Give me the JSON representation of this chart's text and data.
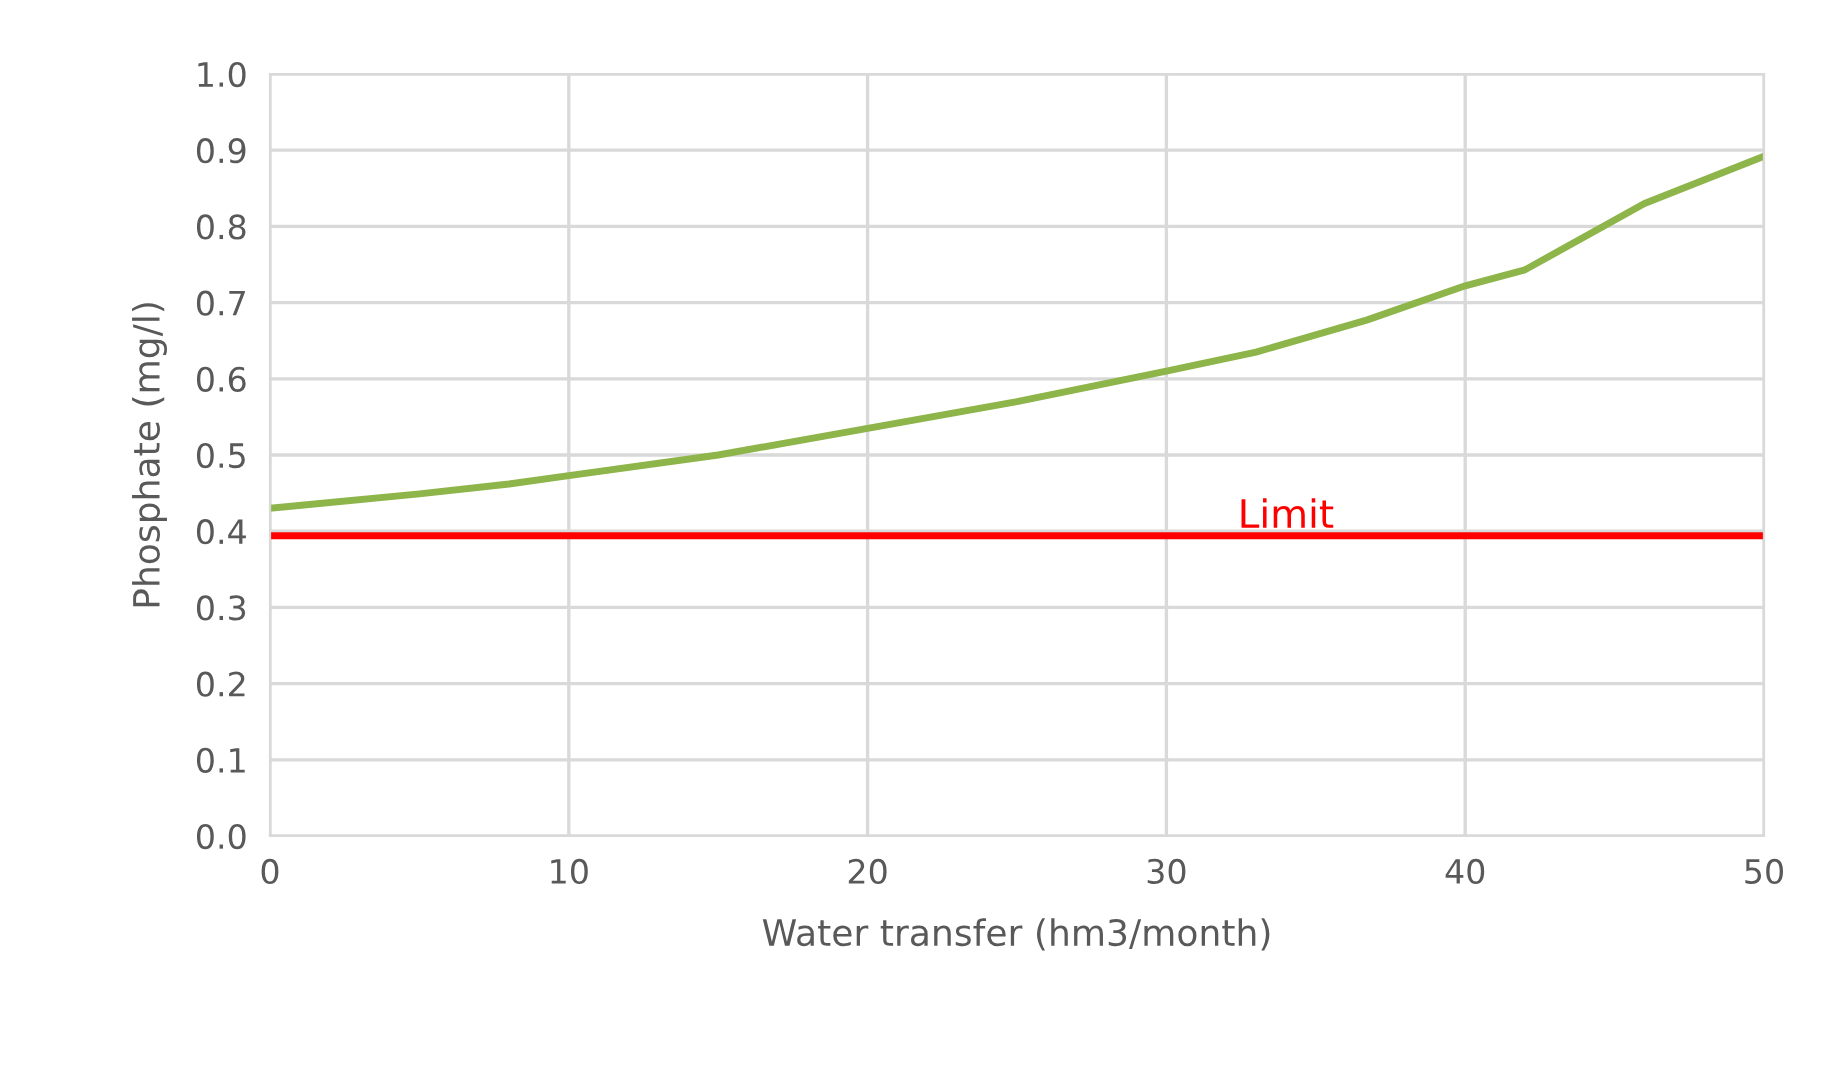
{
  "chart_data": {
    "type": "line",
    "xlabel": "Water transfer (hm3/month)",
    "ylabel": "Phosphate (mg/l)",
    "x": [
      0,
      5,
      8,
      10,
      15,
      20,
      25,
      30,
      33,
      36.7,
      40,
      42,
      46,
      50
    ],
    "series": [
      {
        "color": "#8db54a",
        "values": [
          0.43,
          0.449,
          0.462,
          0.473,
          0.5,
          0.535,
          0.57,
          0.61,
          0.635,
          0.677,
          0.722,
          0.743,
          0.83,
          0.892
        ]
      }
    ],
    "xlim": [
      0,
      50
    ],
    "xticks": [
      0,
      10,
      20,
      30,
      40,
      50
    ],
    "ylim": [
      0,
      1.0
    ],
    "yticks": [
      {
        "value": 0,
        "label": "0.0"
      },
      0.1,
      0.2,
      0.3,
      0.4,
      0.5,
      0.6,
      0.7,
      0.8,
      0.9,
      {
        "value": 1.0,
        "label": "1.0"
      }
    ],
    "grid": true,
    "marker": "none",
    "line_style": "solid",
    "ref_lines": [
      {
        "axis": "y",
        "value": 0.394,
        "label": "Limit",
        "color": "#ff0000"
      }
    ]
  }
}
